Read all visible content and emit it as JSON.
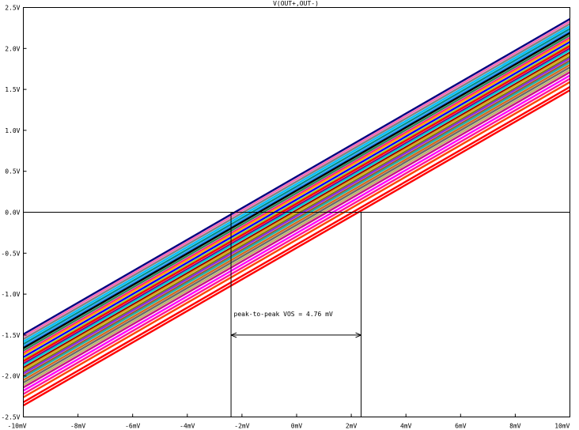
{
  "chart_data": {
    "type": "line",
    "title": "V(OUT+,OUT-)",
    "xlim": [
      -10,
      10
    ],
    "ylim": [
      -2.5,
      2.5
    ],
    "x_tick_values": [
      -10,
      -8,
      -6,
      -4,
      -2,
      0,
      2,
      4,
      6,
      8,
      10
    ],
    "x_tick_labels": [
      "-10mV",
      "-8mV",
      "-6mV",
      "-4mV",
      "-2mV",
      "0mV",
      "2mV",
      "4mV",
      "6mV",
      "8mV",
      "10mV"
    ],
    "y_tick_values": [
      2.5,
      2.0,
      1.5,
      1.0,
      0.5,
      0.0,
      -0.5,
      -1.0,
      -1.5,
      -2.0,
      -2.5
    ],
    "y_tick_labels": [
      "2.5V",
      "2.0V",
      "1.5V",
      "1.0V",
      "0.5V",
      "0.0V",
      "-0.5V",
      "-1.0V",
      "-1.5V",
      "-2.0V",
      "-2.5V"
    ],
    "grid": false,
    "series_x": [
      -10,
      10
    ],
    "series": [
      {
        "color": "#000080",
        "values": [
          -1.49,
          2.36
        ]
      },
      {
        "color": "#ff69b4",
        "values": [
          -1.52,
          2.33
        ]
      },
      {
        "color": "#808080",
        "values": [
          -1.55,
          2.3
        ]
      },
      {
        "color": "#00bfff",
        "values": [
          -1.58,
          2.27
        ]
      },
      {
        "color": "#008b8b",
        "values": [
          -1.61,
          2.24
        ]
      },
      {
        "color": "#1e90ff",
        "values": [
          -1.64,
          2.21
        ]
      },
      {
        "color": "#000000",
        "values": [
          -1.66,
          2.19
        ]
      },
      {
        "color": "#2e8b57",
        "values": [
          -1.69,
          2.16
        ]
      },
      {
        "color": "#ff1493",
        "values": [
          -1.72,
          2.13
        ]
      },
      {
        "color": "#ffa500",
        "values": [
          -1.74,
          2.11
        ]
      },
      {
        "color": "#0000ff",
        "values": [
          -1.77,
          2.08
        ]
      },
      {
        "color": "#9acd32",
        "values": [
          -1.8,
          2.05
        ]
      },
      {
        "color": "#ff0000",
        "values": [
          -1.82,
          2.03
        ]
      },
      {
        "color": "#800080",
        "values": [
          -1.85,
          2.0
        ]
      },
      {
        "color": "#00ced1",
        "values": [
          -1.87,
          1.98
        ]
      },
      {
        "color": "#8b0000",
        "values": [
          -1.9,
          1.95
        ]
      },
      {
        "color": "#daa520",
        "values": [
          -1.92,
          1.93
        ]
      },
      {
        "color": "#808000",
        "values": [
          -1.95,
          1.9
        ]
      },
      {
        "color": "#8a2be2",
        "values": [
          -1.97,
          1.88
        ]
      },
      {
        "color": "#a0522d",
        "values": [
          -2.0,
          1.85
        ]
      },
      {
        "color": "#20b2aa",
        "values": [
          -2.02,
          1.83
        ]
      },
      {
        "color": "#d2691e",
        "values": [
          -2.05,
          1.8
        ]
      },
      {
        "color": "#696969",
        "values": [
          -2.08,
          1.77
        ]
      },
      {
        "color": "#bdb76b",
        "values": [
          -2.11,
          1.74
        ]
      },
      {
        "color": "#c71585",
        "values": [
          -2.14,
          1.71
        ]
      },
      {
        "color": "#ff00ff",
        "values": [
          -2.18,
          1.67
        ]
      },
      {
        "color": "#ff1493",
        "values": [
          -2.22,
          1.63
        ]
      },
      {
        "color": "#ff4500",
        "values": [
          -2.26,
          1.59
        ]
      },
      {
        "color": "#ff0000",
        "values": [
          -2.32,
          1.53
        ]
      },
      {
        "color": "#ff0000",
        "values": [
          -2.36,
          1.49
        ]
      }
    ],
    "markers": {
      "x1": -2.4,
      "x2": 2.36
    },
    "annotation": {
      "text": "peak-to-peak VOS = 4.76 mV",
      "x": -2.3,
      "y": -1.27,
      "arrow_y": -1.5
    }
  }
}
